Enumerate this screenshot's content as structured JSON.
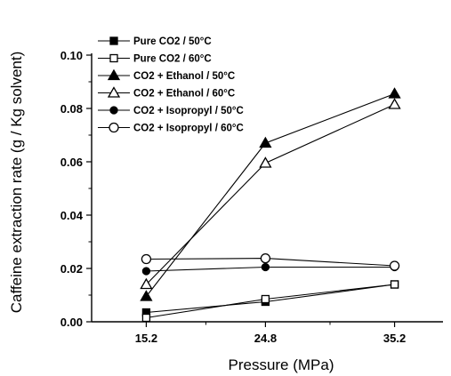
{
  "chart_data": {
    "type": "line",
    "title": "",
    "xlabel": "Pressure (MPa)",
    "ylabel": "Caffeine extraction rate (g / Kg solvent)",
    "x": [
      15.2,
      24.8,
      35.2
    ],
    "x_tick_labels": [
      "15.2",
      "24.8",
      "35.2"
    ],
    "xlim": [
      10.8,
      39.1
    ],
    "ylim": [
      0.0,
      0.1
    ],
    "y_tick_labels": [
      "0.00",
      "0.02",
      "0.04",
      "0.06",
      "0.08",
      "0.10"
    ],
    "y_ticks": [
      0.0,
      0.02,
      0.04,
      0.06,
      0.08,
      0.1
    ],
    "grid": false,
    "legend_position": "top-left",
    "series": [
      {
        "name": "Pure CO2 / 50°C",
        "marker": "square-filled",
        "values": [
          0.0035,
          0.0075,
          0.014
        ]
      },
      {
        "name": "Pure CO2 / 60°C",
        "marker": "square-open",
        "values": [
          0.0015,
          0.0085,
          0.014
        ]
      },
      {
        "name": "CO2 + Ethanol / 50°C",
        "marker": "triangle-filled",
        "values": [
          0.0095,
          0.067,
          0.0855
        ]
      },
      {
        "name": "CO2 + Ethanol / 60°C",
        "marker": "triangle-open",
        "values": [
          0.014,
          0.0595,
          0.0815
        ]
      },
      {
        "name": "CO2 + Isopropyl / 50°C",
        "marker": "circle-filled",
        "values": [
          0.019,
          0.0205,
          0.0205
        ]
      },
      {
        "name": "CO2 + Isopropyl / 60°C",
        "marker": "circle-open",
        "values": [
          0.0235,
          0.0238,
          0.021
        ]
      }
    ]
  }
}
